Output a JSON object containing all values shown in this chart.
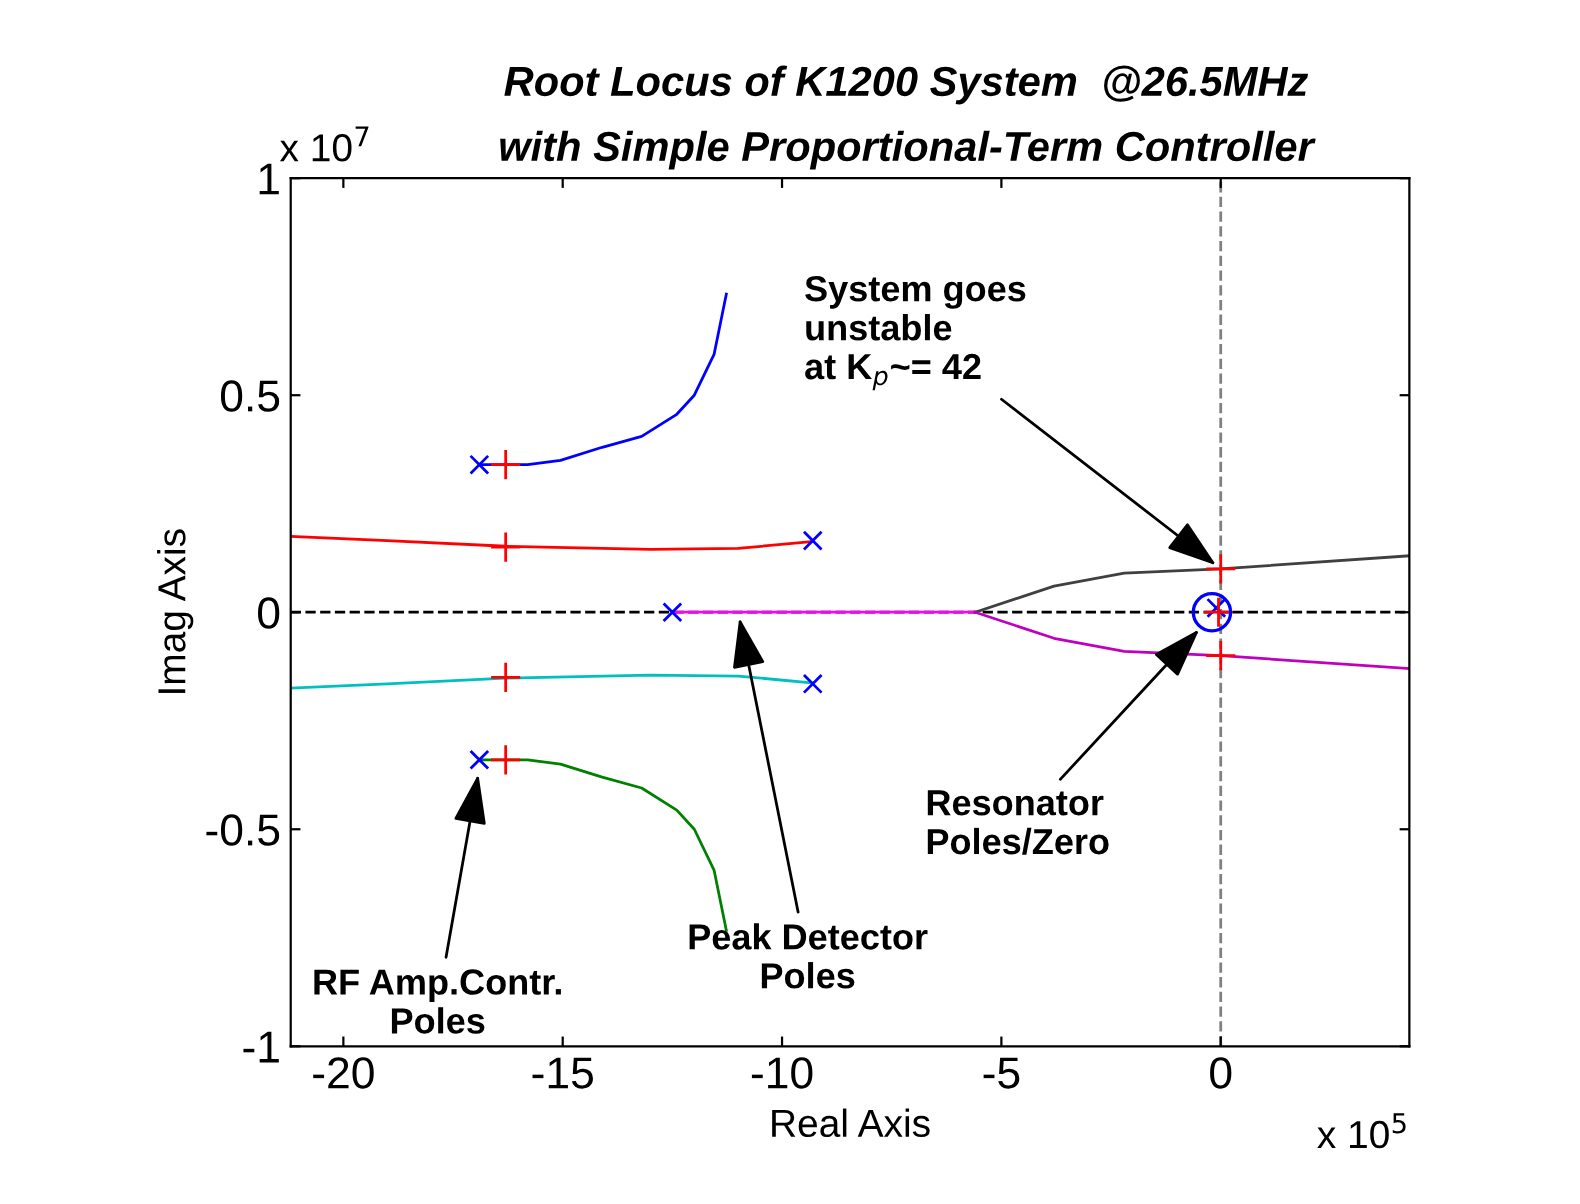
{
  "chart_data": {
    "type": "line",
    "title": "Root Locus of K1200 System  @26.5MHz",
    "subtitle": "with Simple Proportional-Term Controller",
    "xlabel": "Real Axis",
    "ylabel": "Imag Axis",
    "xlim": [
      -21.2,
      4.3
    ],
    "xticks": [
      -20,
      -15,
      -10,
      -5,
      0
    ],
    "ylim": [
      -1,
      1
    ],
    "yticks": [
      -1,
      -0.5,
      0,
      0.5,
      1
    ],
    "grid": false,
    "legend": false,
    "series": [
      {
        "color": "#0000ff",
        "x": [
          -16.9,
          -15.8,
          -15.05,
          -14.1,
          -13.2,
          -12.4,
          -12.0,
          -11.55,
          -11.27
        ],
        "values": [
          0.34,
          0.34,
          0.35,
          0.38,
          0.405,
          0.456,
          0.5,
          0.594,
          0.733
        ]
      },
      {
        "color": "#008000",
        "x": [
          -16.9,
          -15.8,
          -15.05,
          -14.1,
          -13.2,
          -12.4,
          -12.0,
          -11.55,
          -11.27
        ],
        "values": [
          -0.34,
          -0.34,
          -0.35,
          -0.38,
          -0.405,
          -0.456,
          -0.5,
          -0.594,
          -0.733
        ]
      },
      {
        "color": "#ff0000",
        "x": [
          -21.2,
          -19,
          -16.3,
          -13,
          -11,
          -9.3
        ],
        "values": [
          0.175,
          0.165,
          0.152,
          0.145,
          0.147,
          0.163
        ]
      },
      {
        "color": "#00bfbf",
        "x": [
          -21.2,
          -19,
          -16.3,
          -13,
          -11,
          -9.3
        ],
        "values": [
          -0.175,
          -0.165,
          -0.152,
          -0.145,
          -0.147,
          -0.163
        ]
      },
      {
        "color": "#ff00ff",
        "x": [
          -12.5,
          -5.6
        ],
        "values": [
          0,
          0
        ]
      },
      {
        "color": "#404040",
        "x": [
          -5.6,
          -3.8,
          -2.2,
          0,
          4.3
        ],
        "values": [
          0,
          0.06,
          0.09,
          0.1,
          0.13
        ]
      },
      {
        "color": "#bf00bf",
        "x": [
          -5.6,
          -3.8,
          -2.2,
          0,
          4.3
        ],
        "values": [
          0,
          -0.06,
          -0.09,
          -0.1,
          -0.13
        ]
      },
      {
        "type": "scatter",
        "marker": "cross",
        "color": "#0000ff",
        "x": [
          -16.9,
          -16.9,
          -9.3,
          -9.3,
          -12.5,
          -0.1
        ],
        "values": [
          0.34,
          -0.34,
          0.165,
          -0.165,
          0,
          0.01
        ]
      },
      {
        "type": "scatter",
        "marker": "circle",
        "color": "#0000ff",
        "x": [
          -0.2
        ],
        "values": [
          0
        ]
      },
      {
        "type": "scatter",
        "marker": "plus",
        "color": "#ff0000",
        "x": [
          -16.3,
          -16.3,
          -16.3,
          -16.3,
          0,
          0,
          -0.05
        ],
        "values": [
          0.34,
          -0.34,
          0.15,
          -0.15,
          0.1,
          -0.1,
          0
        ]
      }
    ],
    "ref_lines": [
      {
        "axis": "y",
        "value": 0,
        "color": "#000000",
        "line_style": "dashed"
      },
      {
        "axis": "x",
        "value": 0,
        "color": "#808080",
        "line_style": "dashed"
      }
    ],
    "annotations": [
      {
        "text": "System goes\nunstable\nat K$_{p}$~= 42",
        "x": 0,
        "y": 0.1
      },
      {
        "text": "Resonator\nPoles/Zero",
        "x": -0.4,
        "y": -0.03
      },
      {
        "text": "Peak Detector\nPoles",
        "x": -11,
        "y": 0
      },
      {
        "text": "RF Amp.Contr.\nPoles",
        "x": -16.9,
        "y": -0.36
      },
      "x 10$^{7}$",
      "x 10$^{5}$"
    ]
  }
}
